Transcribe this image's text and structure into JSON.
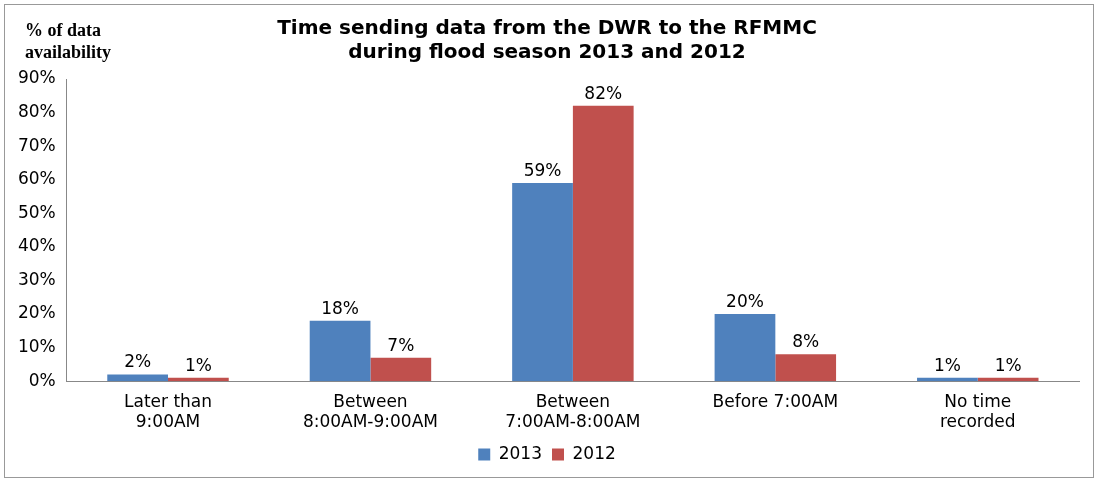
{
  "chart_data": {
    "type": "bar",
    "title": "Time sending data from the DWR to the RFMMC\nduring flood season 2013 and 2012",
    "ylabel": "% of data\navailability",
    "categories": [
      "Later than 9:00AM",
      "Between 8:00AM-9:00AM",
      "Between 7:00AM-8:00AM",
      "Before 7:00AM",
      "No time recorded"
    ],
    "series": [
      {
        "name": "2013",
        "color": "#4f81bd",
        "values": [
          2,
          18,
          59,
          20,
          1
        ],
        "value_labels": [
          "2%",
          "18%",
          "59%",
          "20%",
          "1%"
        ]
      },
      {
        "name": "2012",
        "color": "#c0504d",
        "values": [
          1,
          7,
          82,
          8,
          1
        ],
        "value_labels": [
          "1%",
          "7%",
          "82%",
          "8%",
          "1%"
        ]
      }
    ],
    "ylim": [
      0,
      90
    ],
    "yticks": [
      {
        "value": 0,
        "label": "0%"
      },
      {
        "value": 10,
        "label": "10%"
      },
      {
        "value": 20,
        "label": "20%"
      },
      {
        "value": 30,
        "label": "30%"
      },
      {
        "value": 40,
        "label": "40%"
      },
      {
        "value": 50,
        "label": "50%"
      },
      {
        "value": 60,
        "label": "60%"
      },
      {
        "value": 70,
        "label": "70%"
      },
      {
        "value": 80,
        "label": "80%"
      },
      {
        "value": 90,
        "label": "90%"
      }
    ],
    "grid": false,
    "legend": "bottom"
  }
}
